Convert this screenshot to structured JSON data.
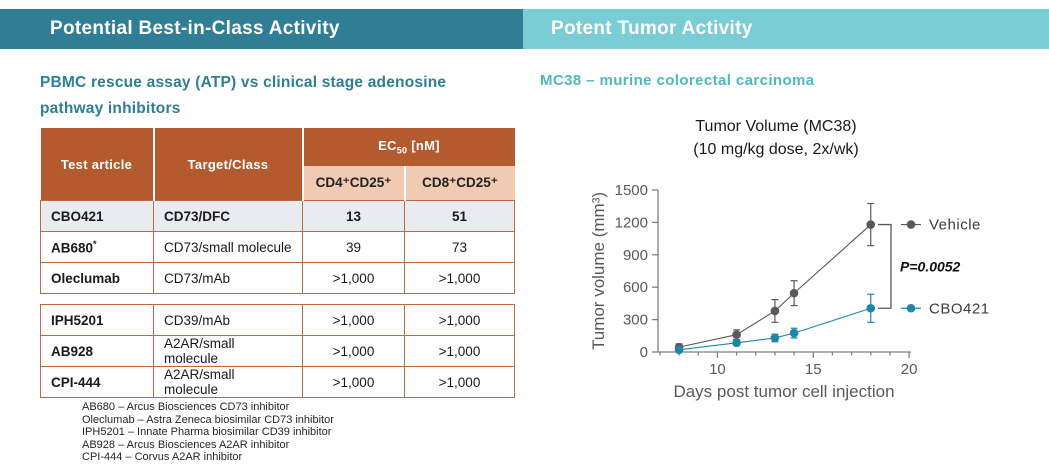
{
  "colors": {
    "left_header_bg": "#2F7E95",
    "right_header_bg": "#7ACCD5",
    "left_accent": "#2E7F96",
    "right_accent": "#4FB9C1",
    "table_header_bg": "#B35B2F",
    "table_subheader_bg": "#F0CAB3",
    "table_border": "#C2693B",
    "highlight_row_bg": "#E9EBF1",
    "axis_gray": "#7f7f7f",
    "tick_text_gray": "#595959"
  },
  "left_panel": {
    "header": "Potential Best-in-Class Activity",
    "subtitle_line1": "PBMC rescue assay (ATP) vs clinical stage adenosine",
    "subtitle_line2": "pathway inhibitors",
    "table": {
      "col_headers": [
        "Test article",
        "Target/Class"
      ],
      "ec50": {
        "prefix": "EC",
        "sub": "50",
        "suffix": " [nM]"
      },
      "sub_headers": [
        "CD4⁺CD25⁺",
        "CD8⁺CD25⁺"
      ],
      "group1": [
        {
          "article": "CBO421",
          "target": "CD73/DFC",
          "cd4": "13",
          "cd8": "51",
          "highlight": true
        },
        {
          "article": "AB680",
          "article_sup": "*",
          "target": "CD73/small molecule",
          "cd4": "39",
          "cd8": "73"
        },
        {
          "article": "Oleclumab",
          "target": "CD73/mAb",
          "cd4": ">1,000",
          "cd8": ">1,000"
        }
      ],
      "group2": [
        {
          "article": "IPH5201",
          "target": "CD39/mAb",
          "cd4": ">1,000",
          "cd8": ">1,000"
        },
        {
          "article": "AB928",
          "target": "A2AR/small molecule",
          "cd4": ">1,000",
          "cd8": ">1,000"
        },
        {
          "article": "CPI-444",
          "target": "A2AR/small molecule",
          "cd4": ">1,000",
          "cd8": ">1,000"
        }
      ]
    },
    "footnotes": [
      "AB680 – Arcus Biosciences CD73 inhibitor",
      "Oleclumab – Astra Zeneca biosimilar CD73 inhibitor",
      "IPH5201 – Innate Pharma biosimilar CD39 inhibitor",
      "AB928 – Arcus Biosciences A2AR inhibitor",
      "CPI-444 – Corvus A2AR inhibitor"
    ]
  },
  "right_panel": {
    "header": "Potent Tumor Activity",
    "subtitle": "MC38 – murine colorectal carcinoma"
  },
  "chart_data": {
    "type": "line",
    "title_lines": [
      "Tumor Volume (MC38)",
      "(10 mg/kg dose, 2x/wk)"
    ],
    "xlabel": "Days post tumor cell injection",
    "ylabel": "Tumor volume (mm³)",
    "xlim": [
      6.9,
      20.1
    ],
    "ylim": [
      0,
      1500
    ],
    "x_major_ticks": [
      10,
      15,
      20
    ],
    "x_minor_tick_step": 1,
    "y_ticks": [
      0,
      300,
      600,
      900,
      1200,
      1500
    ],
    "x": [
      8,
      11,
      13,
      14,
      18
    ],
    "series": [
      {
        "name": "Vehicle",
        "color": "#595959",
        "values": [
          45,
          160,
          380,
          545,
          1180
        ],
        "errors": [
          30,
          45,
          105,
          115,
          195
        ]
      },
      {
        "name": "CBO421",
        "color": "#1F86A9",
        "values": [
          20,
          85,
          130,
          175,
          405
        ],
        "errors": [
          15,
          25,
          35,
          45,
          130
        ]
      }
    ],
    "annotation": "P=0.0052",
    "legend_position": "right-of-endpoints",
    "grid": false
  }
}
